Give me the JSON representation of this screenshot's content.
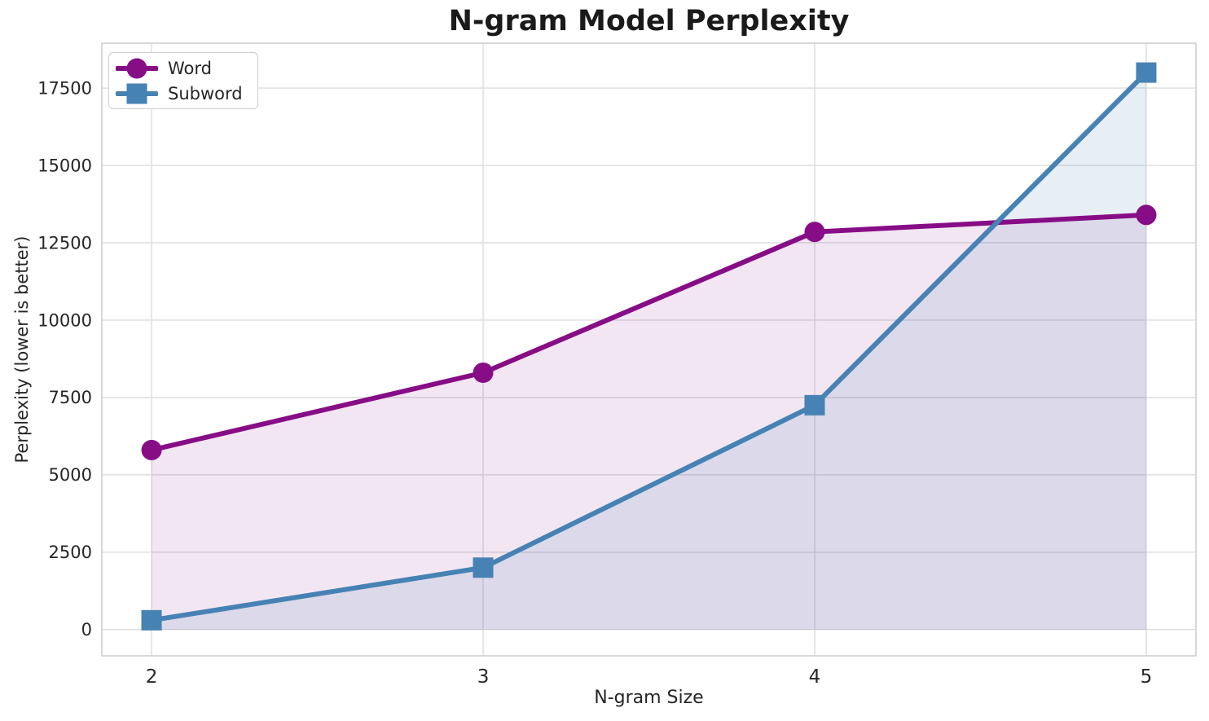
{
  "chart_data": {
    "type": "line",
    "title": "N-gram Model Perplexity",
    "xlabel": "N-gram Size",
    "ylabel": "Perplexity (lower is better)",
    "x": [
      2,
      3,
      4,
      5
    ],
    "series": [
      {
        "name": "Word",
        "values": [
          5800,
          8300,
          12850,
          13400
        ],
        "color": "#870d87",
        "marker": "circle",
        "fill_alpha": 0.1
      },
      {
        "name": "Subword",
        "values": [
          300,
          2000,
          7250,
          18000
        ],
        "color": "#4682b4",
        "marker": "square",
        "fill_alpha": 0.13
      }
    ],
    "fill_to_zero": true,
    "xticks": [
      2,
      3,
      4,
      5
    ],
    "yticks": [
      0,
      2500,
      5000,
      7500,
      10000,
      12500,
      15000,
      17500
    ],
    "xlim": [
      1.85,
      5.15
    ],
    "ylim": [
      -850,
      18950
    ],
    "grid": true,
    "legend_position": "upper-left",
    "colors": {
      "grid": "#dcdcdc",
      "spine": "#cccccc",
      "tick_text": "#262626",
      "title_text": "#1a1a1a"
    }
  }
}
